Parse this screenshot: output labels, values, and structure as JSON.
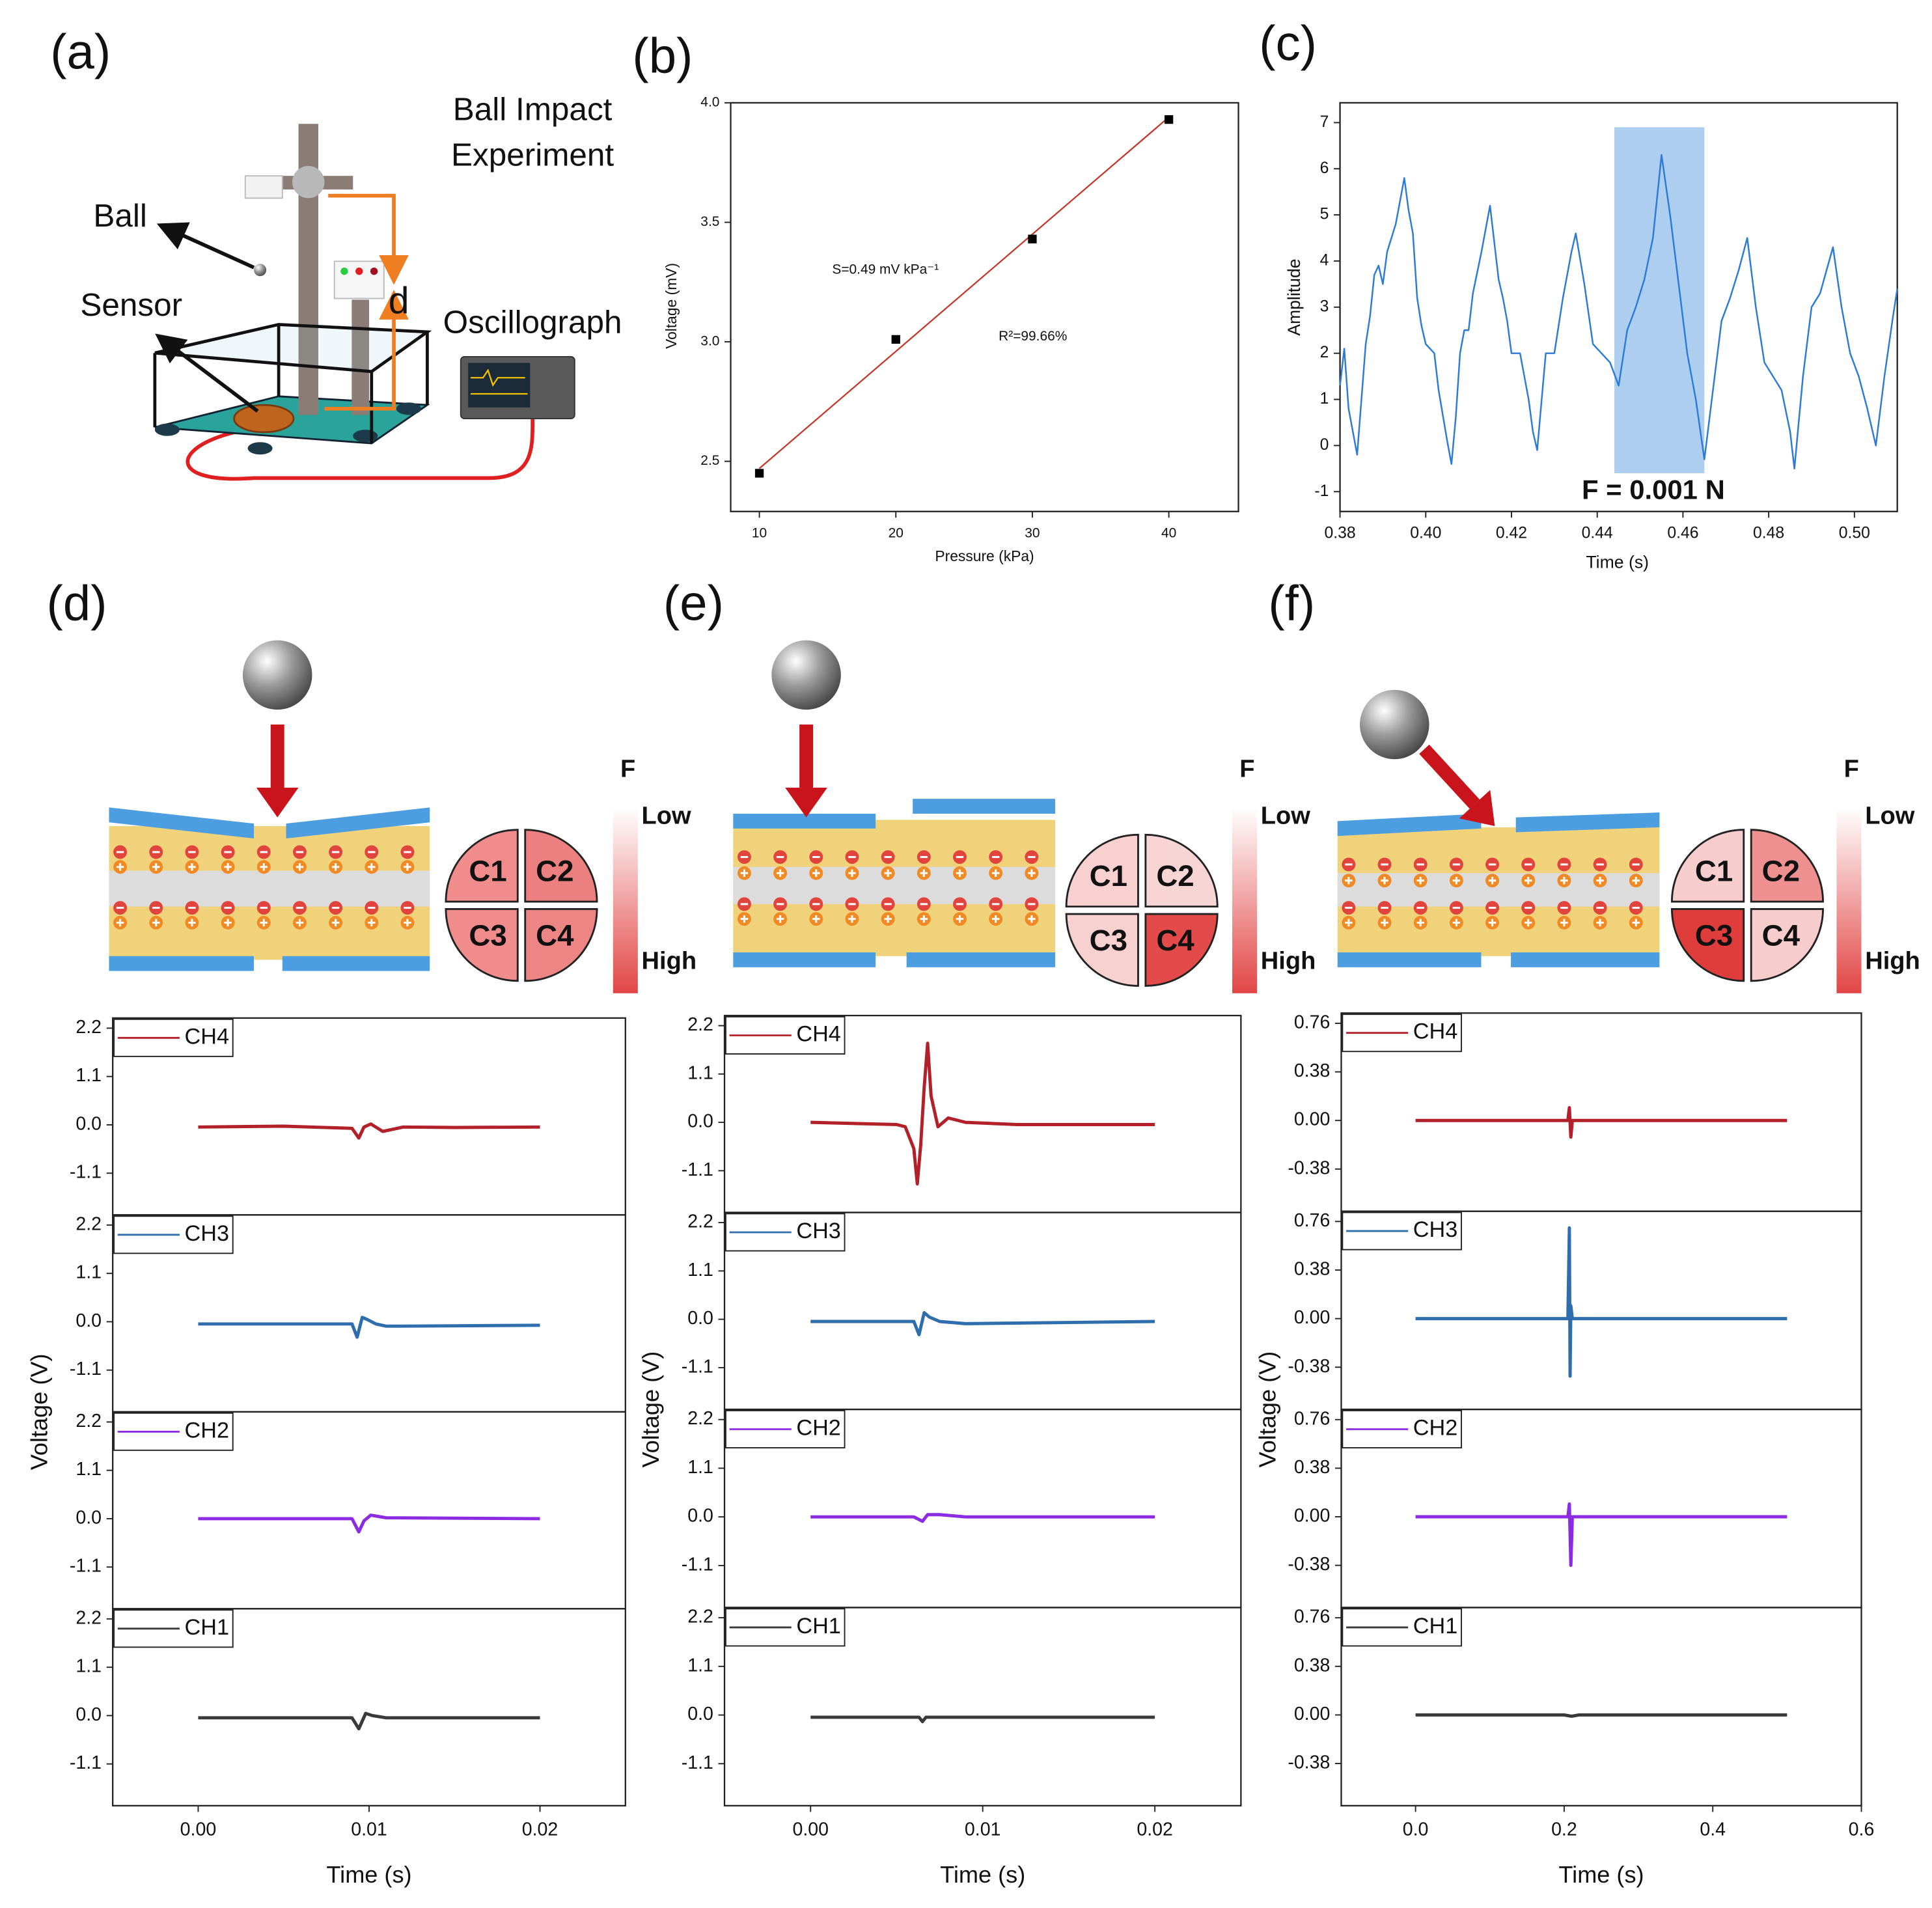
{
  "panel_labels": [
    "(a)",
    "(b)",
    "(c)",
    "(d)",
    "(e)",
    "(f)"
  ],
  "setup": {
    "title_lines": [
      "Ball Impact",
      "Experiment"
    ],
    "ball": "Ball",
    "sensor": "Sensor",
    "distance": "d",
    "oscillograph": "Oscillograph"
  },
  "schematics": [
    {
      "quadrants": [
        "C1",
        "C2",
        "C3",
        "C4"
      ],
      "quadrant_colors": [
        "#f08c8c",
        "#ec8080",
        "#f08c8c",
        "#ee8585"
      ],
      "scale_title": "F",
      "scale_low": "Low",
      "scale_high": "High"
    },
    {
      "quadrants": [
        "C1",
        "C2",
        "C3",
        "C4"
      ],
      "quadrant_colors": [
        "#f8d0d0",
        "#f8d5d5",
        "#f7d0d0",
        "#e34a4a"
      ],
      "scale_title": "F",
      "scale_low": "Low",
      "scale_high": "High"
    },
    {
      "quadrants": [
        "C1",
        "C2",
        "C3",
        "C4"
      ],
      "quadrant_colors": [
        "#f7cccc",
        "#ef9090",
        "#df3c3c",
        "#f7cccc"
      ],
      "scale_title": "F",
      "scale_low": "Low",
      "scale_high": "High"
    }
  ],
  "chart_data": [
    {
      "type": "scatter",
      "x_label": "Pressure (kPa)",
      "y_label": "Voltage (mV)",
      "x": [
        10,
        20,
        30,
        40
      ],
      "values": [
        2.45,
        3.01,
        3.43,
        3.93
      ],
      "color": "#000000",
      "fit_line": {
        "x": [
          10,
          40
        ],
        "values": [
          2.47,
          3.94
        ],
        "color": "#c0392b"
      },
      "annotations": [
        "S=0.49 mV kPa⁻¹",
        "R²=99.66%"
      ],
      "xlim": [
        7.9,
        45.1
      ],
      "xticks": [
        10,
        20,
        30,
        40
      ],
      "ylim": [
        2.29,
        4.0
      ],
      "yticks": [
        2.5,
        {
          "value": 3,
          "label": "3.0"
        },
        3.5,
        {
          "value": 4,
          "label": "4.0"
        }
      ]
    },
    {
      "type": "line",
      "x_label": "Time (s)",
      "y_label": "Amplitude",
      "annotations": [
        "F = 0.001 N"
      ],
      "highlight": {
        "x": [
          0.444,
          0.465
        ],
        "y": [
          -0.6,
          6.9
        ],
        "color": "#9fc5ec"
      },
      "x": [
        0.38,
        0.381,
        0.382,
        0.383,
        0.384,
        0.385,
        0.386,
        0.387,
        0.388,
        0.389,
        0.39,
        0.391,
        0.393,
        0.395,
        0.396,
        0.397,
        0.398,
        0.399,
        0.4,
        0.402,
        0.403,
        0.405,
        0.406,
        0.407,
        0.408,
        0.409,
        0.41,
        0.411,
        0.413,
        0.415,
        0.417,
        0.418,
        0.419,
        0.42,
        0.422,
        0.424,
        0.425,
        0.426,
        0.428,
        0.43,
        0.432,
        0.434,
        0.435,
        0.437,
        0.439,
        0.441,
        0.443,
        0.445,
        0.447,
        0.449,
        0.451,
        0.453,
        0.455,
        0.457,
        0.459,
        0.461,
        0.463,
        0.465,
        0.467,
        0.469,
        0.471,
        0.473,
        0.475,
        0.477,
        0.479,
        0.481,
        0.483,
        0.485,
        0.486,
        0.488,
        0.49,
        0.492,
        0.495,
        0.497,
        0.499,
        0.501,
        0.503,
        0.505,
        0.507,
        0.509,
        0.51
      ],
      "series": [
        {
          "name": "Amplitude",
          "color": "#2e7bd6",
          "values": [
            1.3,
            2.1,
            0.8,
            0.3,
            -0.2,
            1.0,
            2.2,
            2.8,
            3.7,
            3.9,
            3.5,
            4.2,
            4.8,
            5.8,
            5.1,
            4.6,
            3.2,
            2.6,
            2.2,
            2.0,
            1.2,
            0.1,
            -0.4,
            0.6,
            2.0,
            2.5,
            2.5,
            3.3,
            4.2,
            5.2,
            3.6,
            3.2,
            2.7,
            2.0,
            2.0,
            1.0,
            0.3,
            -0.1,
            2.0,
            2.0,
            3.2,
            4.2,
            4.6,
            3.5,
            2.2,
            2.0,
            1.8,
            1.3,
            2.5,
            3.0,
            3.6,
            4.5,
            6.3,
            5.0,
            3.5,
            2.0,
            1.0,
            -0.3,
            1.2,
            2.7,
            3.2,
            3.8,
            4.5,
            3.0,
            1.8,
            1.5,
            1.2,
            0.3,
            -0.5,
            1.5,
            3.0,
            3.3,
            4.3,
            3.0,
            2.0,
            1.5,
            0.8,
            0.0,
            1.5,
            2.8,
            3.4
          ]
        }
      ],
      "xlim": [
        0.38,
        0.51
      ],
      "xticks": [
        0.38,
        {
          "value": 0.4,
          "label": "0.40"
        },
        0.42,
        0.44,
        0.46,
        0.48,
        {
          "value": 0.5,
          "label": "0.50"
        }
      ],
      "ylim": [
        -1.43,
        7.43
      ],
      "yticks": [
        -1,
        0,
        1,
        2,
        3,
        4,
        5,
        6,
        7
      ]
    },
    {
      "type": "line",
      "x": [
        0,
        0.005,
        0.009,
        0.0094,
        0.0097,
        0.0101,
        0.0108,
        0.012,
        0.015,
        0.02
      ],
      "series": [
        {
          "name": "CH4",
          "color": "#b2202a",
          "values": [
            -0.05,
            -0.03,
            -0.08,
            -0.3,
            -0.05,
            0.02,
            -0.15,
            -0.05,
            -0.06,
            -0.05
          ]
        }
      ],
      "xlim": [
        -0.005,
        0.025
      ],
      "ylim": [
        -2.05,
        2.43
      ],
      "yticks": [
        2.2,
        1.1,
        {
          "value": 0,
          "label": "0.0"
        },
        -1.1
      ]
    },
    {
      "type": "line",
      "y_label": "Voltage (V)",
      "x": [
        0,
        0.009,
        0.0093,
        0.0096,
        0.0099,
        0.0104,
        0.011,
        0.0118,
        0.02
      ],
      "series": [
        {
          "name": "CH3",
          "color": "#2f6ead",
          "values": [
            -0.05,
            -0.05,
            -0.35,
            0.1,
            0.05,
            -0.05,
            -0.1,
            -0.1,
            -0.08
          ]
        }
      ],
      "xlim": [
        -0.005,
        0.025
      ],
      "ylim": [
        -2.05,
        2.43
      ],
      "yticks": [
        2.2,
        1.1,
        {
          "value": 0,
          "label": "0.0"
        },
        -1.1
      ]
    },
    {
      "type": "line",
      "x": [
        0,
        0.009,
        0.0094,
        0.0097,
        0.0101,
        0.011,
        0.02
      ],
      "series": [
        {
          "name": "CH2",
          "color": "#8b2be2",
          "values": [
            0,
            0,
            -0.3,
            -0.05,
            0.08,
            0.02,
            0
          ]
        }
      ],
      "xlim": [
        -0.005,
        0.025
      ],
      "ylim": [
        -2.05,
        2.43
      ],
      "yticks": [
        2.2,
        1.1,
        {
          "value": 0,
          "label": "0.0"
        },
        -1.1
      ]
    },
    {
      "type": "line",
      "x_label": "Time (s)",
      "x": [
        0,
        0.009,
        0.0094,
        0.0098,
        0.0102,
        0.011,
        0.02
      ],
      "series": [
        {
          "name": "CH1",
          "color": "#3a3a3a",
          "values": [
            -0.05,
            -0.05,
            -0.3,
            0.05,
            0,
            -0.05,
            -0.05
          ]
        }
      ],
      "xlim": [
        -0.005,
        0.025
      ],
      "xticks": [
        {
          "value": 0,
          "label": "0.00"
        },
        0.01,
        0.02
      ],
      "ylim": [
        -2.05,
        2.43
      ],
      "yticks": [
        2.2,
        1.1,
        {
          "value": 0,
          "label": "0.0"
        },
        -1.1
      ]
    },
    {
      "type": "line",
      "x": [
        0,
        0.005,
        0.0055,
        0.006,
        0.0062,
        0.0064,
        0.0066,
        0.0068,
        0.007,
        0.0074,
        0.008,
        0.009,
        0.012,
        0.02
      ],
      "series": [
        {
          "name": "CH4",
          "color": "#b2202a",
          "values": [
            0,
            -0.05,
            -0.1,
            -0.6,
            -1.4,
            -0.5,
            0.8,
            1.8,
            0.6,
            -0.1,
            0.1,
            0,
            -0.05,
            -0.05
          ]
        }
      ],
      "xlim": [
        -0.005,
        0.025
      ],
      "ylim": [
        -2.05,
        2.43
      ],
      "yticks": [
        2.2,
        1.1,
        {
          "value": 0,
          "label": "0.0"
        },
        -1.1
      ]
    },
    {
      "type": "line",
      "y_label": "Voltage (V)",
      "x": [
        0,
        0.006,
        0.0063,
        0.0066,
        0.0069,
        0.0075,
        0.009,
        0.02
      ],
      "series": [
        {
          "name": "CH3",
          "color": "#2f6ead",
          "values": [
            -0.05,
            -0.05,
            -0.35,
            0.15,
            0.05,
            -0.05,
            -0.1,
            -0.05
          ]
        }
      ],
      "xlim": [
        -0.005,
        0.025
      ],
      "ylim": [
        -2.05,
        2.43
      ],
      "yticks": [
        2.2,
        1.1,
        {
          "value": 0,
          "label": "0.0"
        },
        -1.1
      ]
    },
    {
      "type": "line",
      "x": [
        0,
        0.006,
        0.0065,
        0.0068,
        0.0075,
        0.009,
        0.02
      ],
      "series": [
        {
          "name": "CH2",
          "color": "#8b2be2",
          "values": [
            0,
            0,
            -0.1,
            0.05,
            0.05,
            0,
            0
          ]
        }
      ],
      "xlim": [
        -0.005,
        0.025
      ],
      "ylim": [
        -2.05,
        2.43
      ],
      "yticks": [
        2.2,
        1.1,
        {
          "value": 0,
          "label": "0.0"
        },
        -1.1
      ]
    },
    {
      "type": "line",
      "x_label": "Time (s)",
      "x": [
        0,
        0.0063,
        0.0065,
        0.0067,
        0.02
      ],
      "series": [
        {
          "name": "CH1",
          "color": "#3a3a3a",
          "values": [
            -0.05,
            -0.05,
            -0.15,
            -0.05,
            -0.05
          ]
        }
      ],
      "xlim": [
        -0.005,
        0.025
      ],
      "xticks": [
        {
          "value": 0,
          "label": "0.00"
        },
        0.01,
        0.02
      ],
      "ylim": [
        -2.05,
        2.43
      ],
      "yticks": [
        2.2,
        1.1,
        {
          "value": 0,
          "label": "0.0"
        },
        -1.1
      ]
    },
    {
      "type": "line",
      "x": [
        0,
        0.205,
        0.207,
        0.209,
        0.211,
        0.5
      ],
      "series": [
        {
          "name": "CH4",
          "color": "#b2202a",
          "values": [
            0,
            0,
            0.1,
            -0.13,
            0,
            0
          ]
        }
      ],
      "xlim": [
        -0.1,
        0.6
      ],
      "ylim": [
        -0.71,
        0.84
      ],
      "yticks": [
        0.76,
        0.38,
        {
          "value": 0,
          "label": "0.00"
        },
        -0.38
      ]
    },
    {
      "type": "line",
      "y_label": "Voltage (V)",
      "x": [
        0,
        0.205,
        0.207,
        0.208,
        0.209,
        0.211,
        0.5
      ],
      "series": [
        {
          "name": "CH3",
          "color": "#2f6ead",
          "values": [
            0,
            0,
            0.71,
            -0.45,
            0.1,
            0,
            0
          ]
        }
      ],
      "xlim": [
        -0.1,
        0.6
      ],
      "ylim": [
        -0.71,
        0.84
      ],
      "yticks": [
        0.76,
        0.38,
        {
          "value": 0,
          "label": "0.00"
        },
        -0.38
      ]
    },
    {
      "type": "line",
      "x": [
        0,
        0.205,
        0.207,
        0.209,
        0.211,
        0.5
      ],
      "series": [
        {
          "name": "CH2",
          "color": "#8b2be2",
          "values": [
            0,
            0,
            0.1,
            -0.38,
            0,
            0
          ]
        }
      ],
      "xlim": [
        -0.1,
        0.6
      ],
      "ylim": [
        -0.71,
        0.84
      ],
      "yticks": [
        0.76,
        0.38,
        {
          "value": 0,
          "label": "0.00"
        },
        -0.38
      ]
    },
    {
      "type": "line",
      "x_label": "Time (s)",
      "x": [
        0,
        0.2,
        0.21,
        0.22,
        0.5
      ],
      "series": [
        {
          "name": "CH1",
          "color": "#3a3a3a",
          "values": [
            0,
            0,
            -0.01,
            0,
            0
          ]
        }
      ],
      "xlim": [
        -0.1,
        0.6
      ],
      "xticks": [
        {
          "value": 0,
          "label": "0.0"
        },
        0.2,
        0.4,
        0.6
      ],
      "ylim": [
        -0.71,
        0.84
      ],
      "yticks": [
        0.76,
        0.38,
        {
          "value": 0,
          "label": "0.00"
        },
        -0.38
      ]
    }
  ]
}
